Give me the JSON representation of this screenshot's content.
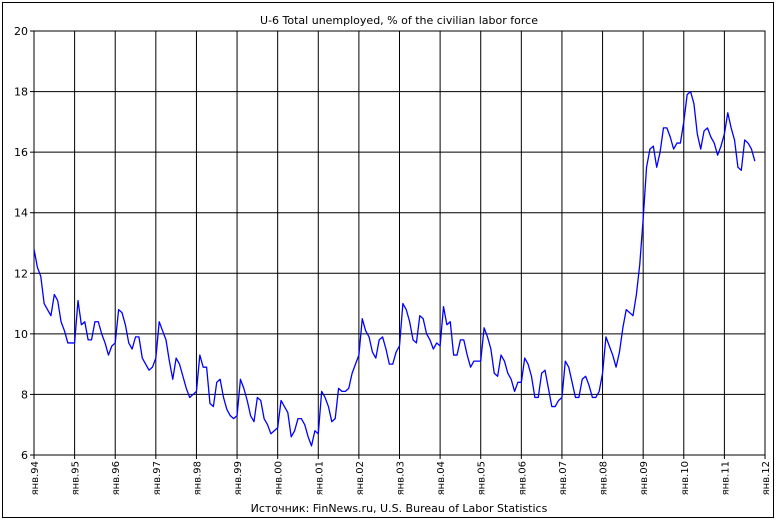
{
  "chart_data": {
    "type": "line",
    "title": "U-6 Total unemployed, % of the civilian labor force",
    "source": "Источник: FinNews.ru, U.S. Bureau of Labor Statistics",
    "xlabel": "",
    "ylabel": "",
    "ylim": [
      6,
      20
    ],
    "yticks": [
      6,
      8,
      10,
      12,
      14,
      16,
      18,
      20
    ],
    "xlim": [
      "1994-01",
      "2012-01"
    ],
    "xtick_labels": [
      "янв.94",
      "янв.95",
      "янв.96",
      "янв.97",
      "янв.98",
      "янв.99",
      "янв.00",
      "янв.01",
      "янв.02",
      "янв.03",
      "янв.04",
      "янв.05",
      "янв.06",
      "янв.07",
      "янв.08",
      "янв.09",
      "янв.10",
      "янв.11",
      "янв.12"
    ],
    "grid": true,
    "legend": "none",
    "line_color": "#0000ff",
    "series": [
      {
        "start": "1994-01",
        "frequency": "monthly",
        "values": [
          12.8,
          12.2,
          11.9,
          11.0,
          10.8,
          10.6,
          11.3,
          11.1,
          10.4,
          10.1,
          9.7,
          9.7,
          9.7,
          11.1,
          10.3,
          10.4,
          9.8,
          9.8,
          10.4,
          10.4,
          10.0,
          9.7,
          9.3,
          9.6,
          9.7,
          10.8,
          10.7,
          10.3,
          9.7,
          9.5,
          9.9,
          9.9,
          9.2,
          9.0,
          8.8,
          8.9,
          9.2,
          10.4,
          10.1,
          9.8,
          9.1,
          8.5,
          9.2,
          9.0,
          8.6,
          8.2,
          7.9,
          8.0,
          8.1,
          9.3,
          8.9,
          8.9,
          7.7,
          7.6,
          8.4,
          8.5,
          7.9,
          7.5,
          7.3,
          7.2,
          7.3,
          8.5,
          8.2,
          7.8,
          7.3,
          7.1,
          7.9,
          7.8,
          7.2,
          7.0,
          6.7,
          6.8,
          6.9,
          7.8,
          7.6,
          7.4,
          6.6,
          6.8,
          7.2,
          7.2,
          7.0,
          6.6,
          6.3,
          6.8,
          6.7,
          8.1,
          7.9,
          7.6,
          7.1,
          7.2,
          8.2,
          8.1,
          8.1,
          8.2,
          8.7,
          9.0,
          9.3,
          10.5,
          10.1,
          9.9,
          9.4,
          9.2,
          9.8,
          9.9,
          9.5,
          9.0,
          9.0,
          9.4,
          9.6,
          11.0,
          10.8,
          10.4,
          9.8,
          9.7,
          10.6,
          10.5,
          10.0,
          9.8,
          9.5,
          9.7,
          9.6,
          10.9,
          10.3,
          10.4,
          9.3,
          9.3,
          9.8,
          9.8,
          9.3,
          8.9,
          9.1,
          9.1,
          9.1,
          10.2,
          9.9,
          9.5,
          8.7,
          8.6,
          9.3,
          9.1,
          8.7,
          8.5,
          8.1,
          8.4,
          8.4,
          9.2,
          9.0,
          8.6,
          7.9,
          7.9,
          8.7,
          8.8,
          8.2,
          7.6,
          7.6,
          7.8,
          7.9,
          9.1,
          8.9,
          8.4,
          7.9,
          7.9,
          8.5,
          8.6,
          8.3,
          7.9,
          7.9,
          8.1,
          8.7,
          9.9,
          9.6,
          9.3,
          8.9,
          9.4,
          10.2,
          10.8,
          10.7,
          10.6,
          11.3,
          12.3,
          13.8,
          15.5,
          16.1,
          16.2,
          15.5,
          16.0,
          16.8,
          16.8,
          16.5,
          16.1,
          16.3,
          16.3,
          17.0,
          17.9,
          18.0,
          17.6,
          16.6,
          16.1,
          16.7,
          16.8,
          16.5,
          16.3,
          15.9,
          16.2,
          16.6,
          17.3,
          16.8,
          16.4,
          15.5,
          15.4,
          16.4,
          16.3,
          16.1,
          15.7
        ]
      }
    ]
  }
}
